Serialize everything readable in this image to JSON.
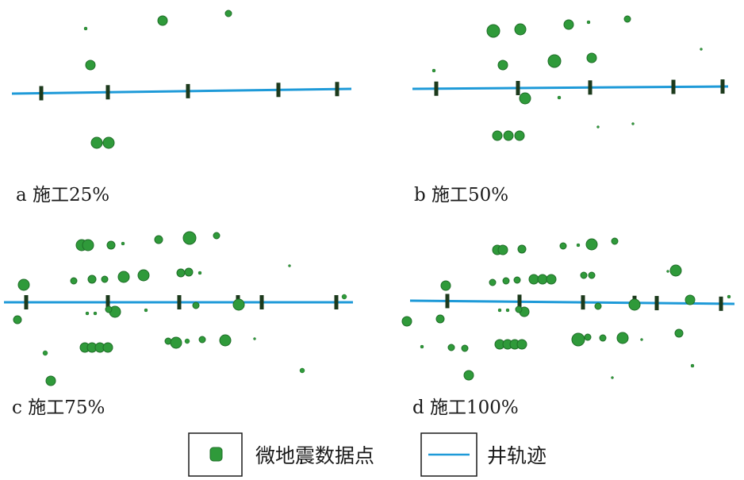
{
  "colors": {
    "point": "#2f9a3a",
    "point_edge": "#1f6e28",
    "well": "#1e9ad8",
    "marker": "#1c3a1c"
  },
  "legend": {
    "points_label": "微地震数据点",
    "well_label": "井轨迹"
  },
  "chart_data": [
    {
      "type": "scatter",
      "caption": "a 施工25%",
      "well_track": [
        [
          15,
          118
        ],
        [
          443,
          112
        ]
      ],
      "stage_markers_x": [
        52,
        136,
        237,
        351,
        425
      ],
      "points": [
        [
          205,
          26,
          6
        ],
        [
          288,
          17,
          4
        ],
        [
          108,
          36,
          2
        ],
        [
          114,
          82,
          6
        ],
        [
          122,
          180,
          7
        ],
        [
          137,
          180,
          7
        ]
      ]
    },
    {
      "type": "scatter",
      "caption": "b 施工50%",
      "well_track": [
        [
          520,
          112
        ],
        [
          918,
          109
        ]
      ],
      "stage_markers_x": [
        550,
        653,
        744,
        849,
        911
      ],
      "points": [
        [
          622,
          39,
          8
        ],
        [
          656,
          37,
          7
        ],
        [
          717,
          31,
          6
        ],
        [
          791,
          24,
          4
        ],
        [
          742,
          28,
          2
        ],
        [
          634,
          82,
          6
        ],
        [
          699,
          77,
          8
        ],
        [
          746,
          73,
          6
        ],
        [
          547,
          89,
          2
        ],
        [
          884,
          62,
          1.5
        ],
        [
          662,
          124,
          7
        ],
        [
          705,
          123,
          2
        ],
        [
          627,
          171,
          6
        ],
        [
          641,
          171,
          6
        ],
        [
          655,
          171,
          6
        ],
        [
          754,
          160,
          1.5
        ],
        [
          798,
          156,
          1.5
        ]
      ]
    },
    {
      "type": "scatter",
      "caption": "c 施工75%",
      "well_track": [
        [
          5,
          381
        ],
        [
          445,
          381
        ]
      ],
      "stage_markers_x": [
        33,
        136,
        226,
        300,
        330,
        424
      ],
      "points": [
        [
          103,
          309,
          7
        ],
        [
          111,
          309,
          7
        ],
        [
          140,
          309,
          5
        ],
        [
          155,
          307,
          2
        ],
        [
          200,
          302,
          5
        ],
        [
          239,
          300,
          8
        ],
        [
          273,
          297,
          4
        ],
        [
          30,
          359,
          7
        ],
        [
          93,
          354,
          4
        ],
        [
          116,
          352,
          5
        ],
        [
          132,
          352,
          4
        ],
        [
          156,
          349,
          7
        ],
        [
          181,
          347,
          7
        ],
        [
          228,
          344,
          5
        ],
        [
          238,
          343,
          5
        ],
        [
          252,
          344,
          2
        ],
        [
          365,
          335,
          1.5
        ],
        [
          22,
          403,
          5
        ],
        [
          145,
          393,
          7
        ],
        [
          137,
          390,
          4
        ],
        [
          184,
          391,
          2
        ],
        [
          247,
          385,
          4
        ],
        [
          301,
          384,
          7
        ],
        [
          434,
          374,
          3
        ],
        [
          107,
          438,
          6
        ],
        [
          116,
          438,
          6
        ],
        [
          126,
          438,
          6
        ],
        [
          136,
          438,
          6
        ],
        [
          212,
          430,
          4
        ],
        [
          222,
          432,
          7
        ],
        [
          236,
          430,
          3
        ],
        [
          255,
          428,
          4
        ],
        [
          284,
          429,
          7
        ],
        [
          321,
          427,
          1.5
        ],
        [
          57,
          445,
          3
        ],
        [
          64,
          480,
          6
        ],
        [
          381,
          467,
          3
        ],
        [
          110,
          395,
          2
        ],
        [
          120,
          395,
          2
        ]
      ]
    },
    {
      "type": "scatter",
      "caption": "d 施工100%",
      "well_track": [
        [
          517,
          379
        ],
        [
          926,
          383
        ]
      ],
      "stage_markers_x": [
        564,
        655,
        735,
        800,
        828,
        909
      ],
      "points": [
        [
          627,
          315,
          6
        ],
        [
          634,
          315,
          6
        ],
        [
          658,
          314,
          5
        ],
        [
          710,
          310,
          4
        ],
        [
          729,
          309,
          2
        ],
        [
          746,
          308,
          7
        ],
        [
          775,
          304,
          4
        ],
        [
          562,
          360,
          6
        ],
        [
          621,
          356,
          4
        ],
        [
          638,
          354,
          4
        ],
        [
          652,
          353,
          4
        ],
        [
          673,
          352,
          6
        ],
        [
          684,
          352,
          6
        ],
        [
          695,
          352,
          6
        ],
        [
          736,
          347,
          4
        ],
        [
          746,
          347,
          4
        ],
        [
          852,
          341,
          7
        ],
        [
          842,
          342,
          1.5
        ],
        [
          513,
          405,
          6
        ],
        [
          555,
          402,
          5
        ],
        [
          661,
          393,
          6
        ],
        [
          654,
          390,
          4
        ],
        [
          630,
          391,
          2
        ],
        [
          640,
          391,
          2
        ],
        [
          754,
          386,
          4
        ],
        [
          800,
          384,
          7
        ],
        [
          870,
          378,
          6
        ],
        [
          919,
          374,
          2
        ],
        [
          630,
          434,
          6
        ],
        [
          640,
          434,
          6
        ],
        [
          649,
          434,
          6
        ],
        [
          658,
          434,
          6
        ],
        [
          729,
          428,
          8
        ],
        [
          741,
          425,
          4
        ],
        [
          760,
          426,
          4
        ],
        [
          785,
          426,
          7
        ],
        [
          809,
          428,
          1.5
        ],
        [
          856,
          420,
          5
        ],
        [
          532,
          437,
          2
        ],
        [
          569,
          438,
          4
        ],
        [
          586,
          439,
          4
        ],
        [
          591,
          473,
          6
        ],
        [
          873,
          461,
          2
        ],
        [
          772,
          476,
          1.5
        ]
      ]
    }
  ]
}
